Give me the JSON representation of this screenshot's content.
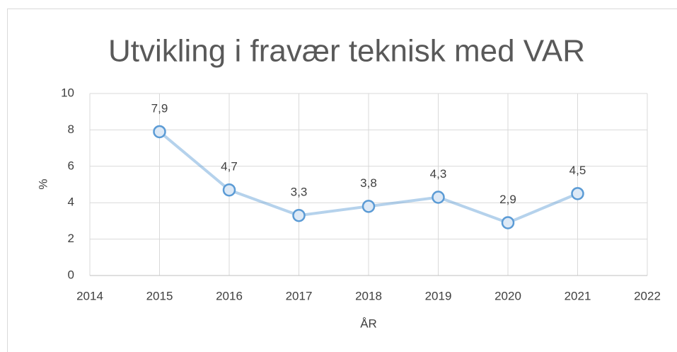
{
  "chart_data": {
    "type": "line",
    "title": "Utvikling i fravær teknisk med VAR",
    "x_label": "ÅR",
    "y_label": "%",
    "x": [
      2015,
      2016,
      2017,
      2018,
      2019,
      2020,
      2021
    ],
    "series": [
      {
        "color": "#5b9bd5",
        "values": [
          7.9,
          4.7,
          3.3,
          3.8,
          4.3,
          2.9,
          4.5
        ],
        "value_labels": [
          "7,9",
          "4,7",
          "3,3",
          "3,8",
          "4,3",
          "2,9",
          "4,5"
        ]
      }
    ],
    "xlim": [
      2014,
      2022
    ],
    "xticks": [
      2014,
      2015,
      2016,
      2017,
      2018,
      2019,
      2020,
      2021,
      2022
    ],
    "ylim": [
      0,
      10
    ],
    "yticks": [
      0,
      2,
      4,
      6,
      8,
      10
    ],
    "grid": true
  }
}
